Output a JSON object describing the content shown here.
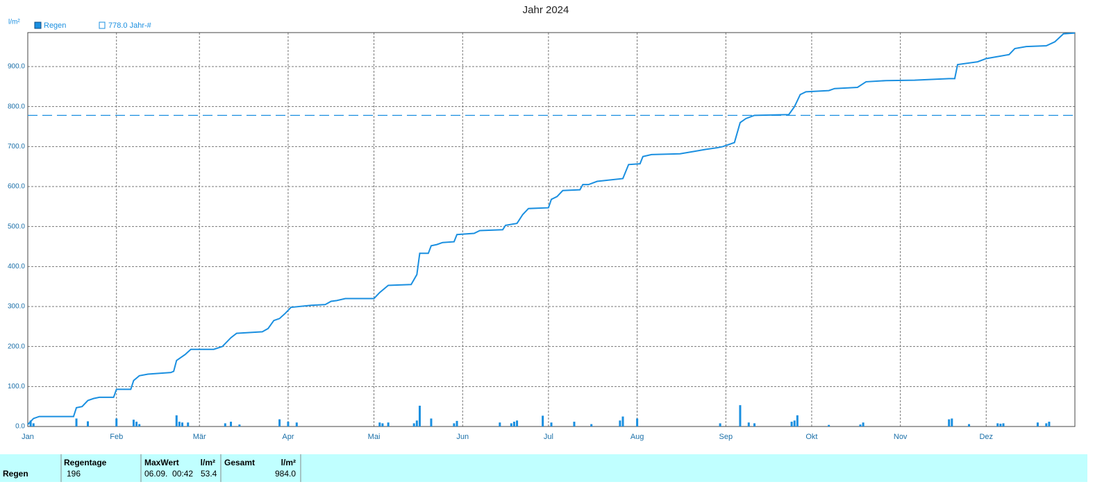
{
  "chart_data": {
    "type": "line",
    "title": "Jahr 2024",
    "y_label": "l/m²",
    "xlim": [
      0,
      366
    ],
    "xticks": [
      {
        "value": 0,
        "label": "Jan"
      },
      {
        "value": 31,
        "label": "Feb"
      },
      {
        "value": 60,
        "label": "Mär"
      },
      {
        "value": 91,
        "label": "Apr"
      },
      {
        "value": 121,
        "label": "Mai"
      },
      {
        "value": 152,
        "label": "Jun"
      },
      {
        "value": 182,
        "label": "Jul"
      },
      {
        "value": 213,
        "label": "Aug"
      },
      {
        "value": 244,
        "label": "Sep"
      },
      {
        "value": 274,
        "label": "Okt"
      },
      {
        "value": 305,
        "label": "Nov"
      },
      {
        "value": 335,
        "label": "Dez"
      }
    ],
    "ylim": [
      0,
      985
    ],
    "yticks": [
      {
        "value": 0,
        "label": "0.0"
      },
      {
        "value": 100,
        "label": "100.0"
      },
      {
        "value": 200,
        "label": "200.0"
      },
      {
        "value": 300,
        "label": "300.0"
      },
      {
        "value": 400,
        "label": "400.0"
      },
      {
        "value": 500,
        "label": "500.0"
      },
      {
        "value": 600,
        "label": "600.0"
      },
      {
        "value": 700,
        "label": "700.0"
      },
      {
        "value": 800,
        "label": "800.0"
      },
      {
        "value": 900,
        "label": "900.0"
      }
    ],
    "grid": true,
    "series": [
      {
        "name": "Regen",
        "color": "#1a8fe0",
        "x": [
          0,
          2,
          4,
          16,
          17,
          19,
          21,
          23,
          25,
          30,
          31,
          36,
          37,
          39,
          42,
          50,
          51,
          52,
          55,
          57,
          65,
          68,
          71,
          73,
          82,
          84,
          86,
          88,
          90,
          92,
          99,
          104,
          106,
          108,
          111,
          121,
          123,
          126,
          134,
          136,
          137,
          140,
          141,
          143,
          145,
          149,
          150,
          156,
          158,
          166,
          167,
          171,
          173,
          175,
          182,
          183,
          185,
          187,
          193,
          194,
          196,
          199,
          208,
          210,
          214,
          215,
          218,
          228,
          233,
          237,
          241,
          243,
          247,
          249,
          251,
          254,
          266,
          268,
          270,
          272,
          280,
          282,
          290,
          293,
          300,
          310,
          322,
          324,
          325,
          332,
          335,
          343,
          345,
          349,
          356,
          359,
          362,
          366
        ],
        "values": [
          5,
          20,
          25,
          25,
          47,
          50,
          65,
          70,
          73,
          73,
          93,
          93,
          115,
          127,
          131,
          135,
          138,
          165,
          180,
          193,
          193,
          200,
          222,
          233,
          237,
          245,
          265,
          270,
          283,
          298,
          303,
          305,
          313,
          315,
          320,
          320,
          335,
          353,
          355,
          380,
          433,
          433,
          452,
          455,
          460,
          462,
          480,
          483,
          490,
          492,
          503,
          508,
          530,
          545,
          547,
          568,
          575,
          590,
          592,
          605,
          605,
          613,
          620,
          655,
          657,
          675,
          680,
          682,
          688,
          693,
          697,
          700,
          710,
          760,
          770,
          778,
          780,
          800,
          830,
          837,
          840,
          845,
          848,
          862,
          865,
          866,
          870,
          870,
          905,
          912,
          920,
          930,
          945,
          950,
          952,
          962,
          982,
          984
        ]
      }
    ],
    "daily": {
      "color": "#1a8fe0",
      "x": [
        1,
        2,
        17,
        21,
        31,
        37,
        38,
        39,
        52,
        53,
        54,
        56,
        69,
        71,
        74,
        88,
        91,
        94,
        123,
        124,
        126,
        135,
        136,
        137,
        141,
        149,
        150,
        165,
        169,
        170,
        171,
        180,
        183,
        191,
        197,
        207,
        208,
        213,
        242,
        249,
        252,
        254,
        267,
        268,
        269,
        280,
        291,
        292,
        322,
        323,
        329,
        339,
        340,
        341,
        353,
        356,
        357
      ],
      "values": [
        15,
        8,
        20,
        13,
        20,
        17,
        12,
        6,
        28,
        12,
        10,
        10,
        8,
        12,
        5,
        18,
        12,
        10,
        10,
        8,
        10,
        8,
        15,
        52,
        20,
        8,
        14,
        10,
        8,
        12,
        15,
        27,
        10,
        12,
        6,
        15,
        25,
        20,
        8,
        53.4,
        10,
        8,
        12,
        15,
        28,
        4,
        5,
        10,
        18,
        20,
        6,
        8,
        7,
        8,
        10,
        8,
        12
      ]
    },
    "reference": {
      "value": 778,
      "label": "778.0 Jahr-#",
      "color": "#1a8fe0"
    }
  },
  "table": {
    "row_label": "Regen",
    "columns": [
      {
        "header": "Regentage",
        "value": "196"
      },
      {
        "header": "MaxWert",
        "unit": "l/m²",
        "date": "06.09.  00:42",
        "value": "53.4"
      },
      {
        "header": "Gesamt",
        "unit": "l/m²",
        "value": "984.0"
      }
    ]
  }
}
